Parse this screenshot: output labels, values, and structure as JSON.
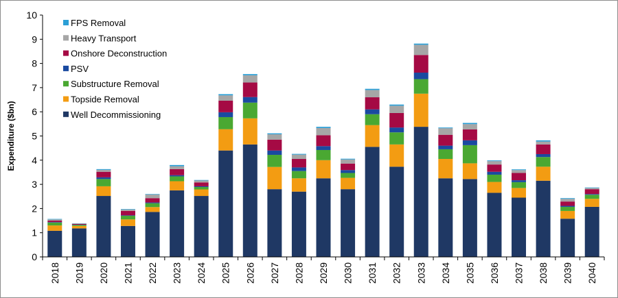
{
  "chart_data": {
    "type": "bar",
    "stacked": true,
    "ylabel": "Expenditure ($bn)",
    "xlabel": "",
    "ylim": [
      0,
      10
    ],
    "yticks": [
      0,
      1,
      2,
      3,
      4,
      5,
      6,
      7,
      8,
      9,
      10
    ],
    "grid": false,
    "legend_position": "top-left",
    "categories": [
      "2018",
      "2019",
      "2020",
      "2021",
      "2022",
      "2023",
      "2024",
      "2025",
      "2026",
      "2027",
      "2028",
      "2029",
      "2030",
      "2031",
      "2032",
      "2033",
      "2034",
      "2035",
      "2036",
      "2037",
      "2038",
      "2039",
      "2040"
    ],
    "series": [
      {
        "name": "Well Decommissioning",
        "color": "#1f3864",
        "values": [
          1.08,
          1.18,
          2.52,
          1.28,
          1.86,
          2.75,
          2.52,
          4.4,
          4.65,
          2.8,
          2.7,
          3.25,
          2.8,
          4.55,
          3.73,
          5.38,
          3.25,
          3.22,
          2.65,
          2.45,
          3.15,
          1.58,
          2.07
        ]
      },
      {
        "name": "Topside Removal",
        "color": "#f39c12",
        "values": [
          0.22,
          0.1,
          0.4,
          0.27,
          0.2,
          0.38,
          0.27,
          0.88,
          1.08,
          0.92,
          0.55,
          0.75,
          0.47,
          0.9,
          0.92,
          1.37,
          0.8,
          0.65,
          0.45,
          0.4,
          0.58,
          0.32,
          0.33
        ]
      },
      {
        "name": "Substructure Removal",
        "color": "#4aa832",
        "values": [
          0.12,
          0.04,
          0.3,
          0.15,
          0.16,
          0.2,
          0.1,
          0.5,
          0.65,
          0.5,
          0.3,
          0.42,
          0.2,
          0.45,
          0.5,
          0.6,
          0.4,
          0.75,
          0.3,
          0.24,
          0.4,
          0.17,
          0.17
        ]
      },
      {
        "name": "PSV",
        "color": "#1a4aa0",
        "values": [
          0.02,
          0.01,
          0.07,
          0.02,
          0.03,
          0.05,
          0.03,
          0.2,
          0.23,
          0.18,
          0.15,
          0.16,
          0.12,
          0.2,
          0.2,
          0.27,
          0.15,
          0.2,
          0.12,
          0.08,
          0.12,
          0.04,
          0.03
        ]
      },
      {
        "name": "Onshore Deconstruction",
        "color": "#a50a44",
        "values": [
          0.06,
          0.03,
          0.23,
          0.18,
          0.18,
          0.25,
          0.16,
          0.48,
          0.6,
          0.45,
          0.35,
          0.45,
          0.27,
          0.5,
          0.6,
          0.73,
          0.45,
          0.45,
          0.3,
          0.3,
          0.4,
          0.18,
          0.2
        ]
      },
      {
        "name": "Heavy Transport",
        "color": "#a6a6a6",
        "values": [
          0.05,
          0.02,
          0.08,
          0.06,
          0.15,
          0.12,
          0.08,
          0.22,
          0.3,
          0.22,
          0.18,
          0.3,
          0.17,
          0.3,
          0.3,
          0.42,
          0.27,
          0.22,
          0.14,
          0.12,
          0.12,
          0.11,
          0.05
        ]
      },
      {
        "name": "FPS Removal",
        "color": "#2b9fd6",
        "values": [
          0.02,
          0.01,
          0.03,
          0.02,
          0.02,
          0.05,
          0.02,
          0.05,
          0.05,
          0.04,
          0.03,
          0.05,
          0.03,
          0.05,
          0.05,
          0.05,
          0.03,
          0.05,
          0.03,
          0.03,
          0.05,
          0.03,
          0.02
        ]
      }
    ]
  }
}
